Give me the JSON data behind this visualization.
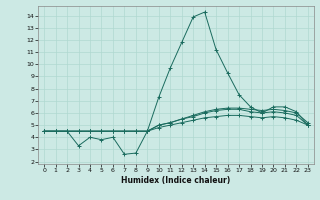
{
  "title": "",
  "xlabel": "Humidex (Indice chaleur)",
  "ylabel": "",
  "bg_color": "#cce9e4",
  "line_color": "#1a6b5e",
  "grid_color": "#b0d8d0",
  "xlim": [
    -0.5,
    23.5
  ],
  "ylim": [
    1.8,
    14.8
  ],
  "yticks": [
    2,
    3,
    4,
    5,
    6,
    7,
    8,
    9,
    10,
    11,
    12,
    13,
    14
  ],
  "xticks": [
    0,
    1,
    2,
    3,
    4,
    5,
    6,
    7,
    8,
    9,
    10,
    11,
    12,
    13,
    14,
    15,
    16,
    17,
    18,
    19,
    20,
    21,
    22,
    23
  ],
  "series": [
    [
      4.5,
      4.5,
      4.5,
      4.5,
      4.5,
      4.5,
      4.5,
      4.5,
      4.5,
      4.5,
      5.0,
      5.2,
      5.5,
      5.7,
      6.0,
      6.2,
      6.3,
      6.3,
      6.1,
      6.0,
      6.1,
      6.0,
      5.8,
      5.0
    ],
    [
      4.5,
      4.5,
      4.5,
      4.5,
      4.5,
      4.5,
      4.5,
      4.5,
      4.5,
      4.5,
      5.0,
      5.2,
      5.5,
      5.8,
      6.1,
      6.3,
      6.4,
      6.4,
      6.3,
      6.2,
      6.3,
      6.2,
      6.0,
      5.2
    ],
    [
      4.5,
      4.5,
      4.5,
      3.3,
      4.0,
      3.8,
      4.0,
      2.6,
      2.7,
      4.5,
      7.3,
      9.7,
      11.8,
      13.9,
      14.3,
      11.2,
      9.3,
      7.5,
      6.5,
      6.0,
      6.5,
      6.5,
      6.1,
      5.0
    ],
    [
      4.5,
      4.5,
      4.5,
      4.5,
      4.5,
      4.5,
      4.5,
      4.5,
      4.5,
      4.5,
      4.8,
      5.0,
      5.2,
      5.4,
      5.6,
      5.7,
      5.8,
      5.8,
      5.7,
      5.6,
      5.7,
      5.6,
      5.4,
      5.0
    ]
  ]
}
